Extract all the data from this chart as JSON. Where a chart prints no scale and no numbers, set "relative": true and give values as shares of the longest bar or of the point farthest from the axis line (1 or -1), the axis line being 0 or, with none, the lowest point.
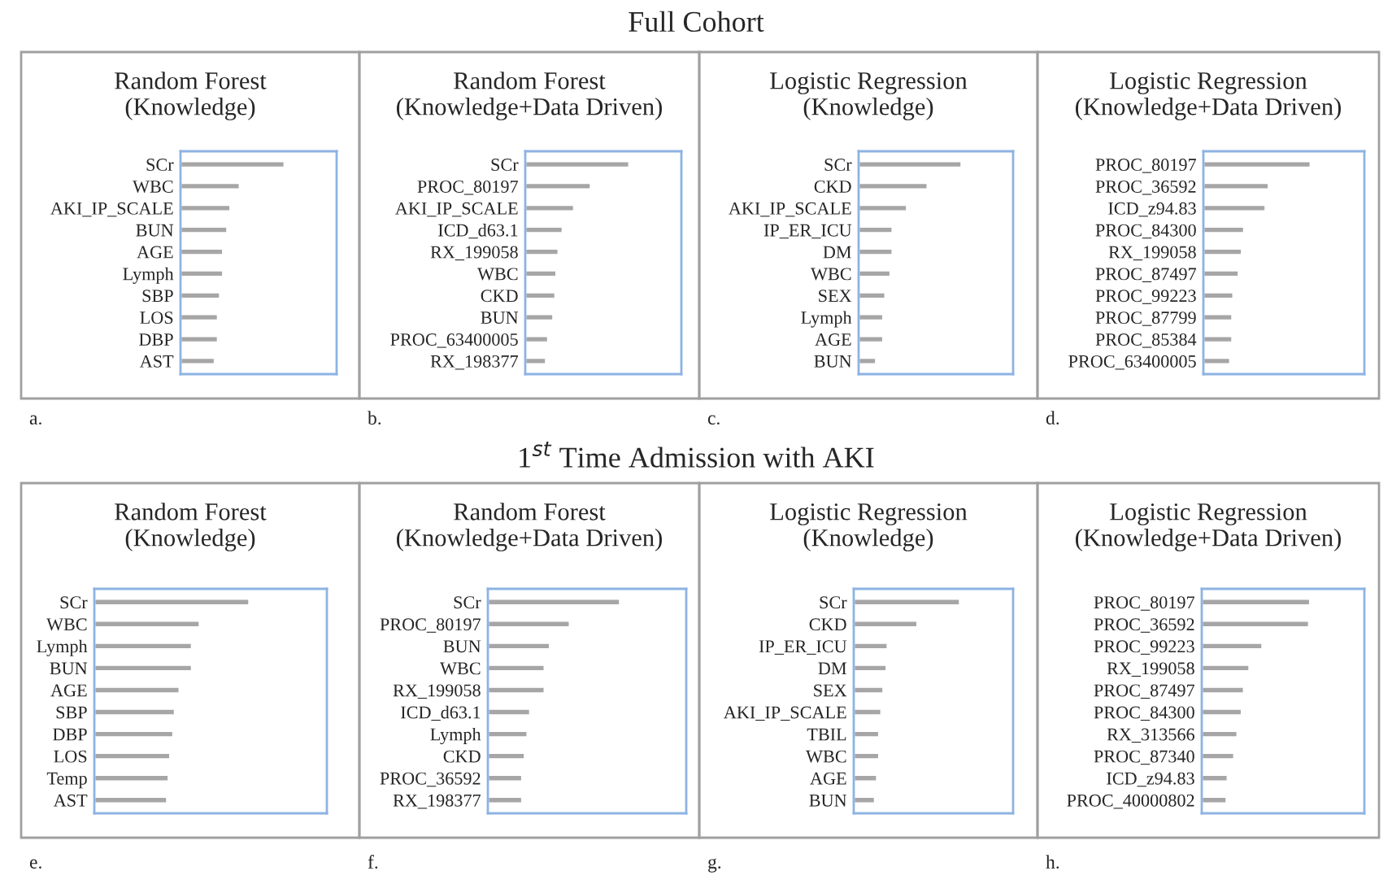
{
  "chart_data": [
    {
      "type": "bar",
      "orientation": "horizontal",
      "relative": true,
      "title": "Random Forest\n(Knowledge)",
      "color": "#a6a6a6",
      "annotations": [
        "Full Cohort",
        "a."
      ],
      "categories": [
        "SCr",
        "WBC",
        "AKI_IP_SCALE",
        "BUN",
        "AGE",
        "Lymph",
        "SBP",
        "LOS",
        "DBP",
        "AST"
      ],
      "values": [
        1,
        0.57,
        0.48,
        0.45,
        0.41,
        0.41,
        0.38,
        0.36,
        0.36,
        0.33
      ]
    },
    {
      "type": "bar",
      "orientation": "horizontal",
      "relative": true,
      "title": "Random Forest\n(Knowledge+Data Driven)",
      "color": "#a6a6a6",
      "annotations": [
        "b."
      ],
      "categories": [
        "SCr",
        "PROC_80197",
        "AKI_IP_SCALE",
        "ICD_d63.1",
        "RX_199058",
        "WBC",
        "CKD",
        "BUN",
        "PROC_63400005",
        "RX_198377"
      ],
      "values": [
        1,
        0.63,
        0.47,
        0.36,
        0.32,
        0.3,
        0.29,
        0.27,
        0.22,
        0.2
      ]
    },
    {
      "type": "bar",
      "orientation": "horizontal",
      "relative": true,
      "title": "Logistic Regression\n(Knowledge)",
      "color": "#a6a6a6",
      "annotations": [
        "c."
      ],
      "categories": [
        "SCr",
        "CKD",
        "AKI_IP_SCALE",
        "IP_ER_ICU",
        "DM",
        "WBC",
        "SEX",
        "Lymph",
        "AGE",
        "BUN"
      ],
      "values": [
        1,
        0.67,
        0.47,
        0.33,
        0.33,
        0.31,
        0.26,
        0.24,
        0.24,
        0.17
      ]
    },
    {
      "type": "bar",
      "orientation": "horizontal",
      "relative": true,
      "title": "Logistic Regression\n(Knowledge+Data Driven)",
      "color": "#a6a6a6",
      "annotations": [
        "d."
      ],
      "categories": [
        "PROC_80197",
        "PROC_36592",
        "ICD_z94.83",
        "PROC_84300",
        "RX_199058",
        "PROC_87497",
        "PROC_99223",
        "PROC_87799",
        "PROC_85384",
        "PROC_63400005"
      ],
      "values": [
        1,
        0.61,
        0.58,
        0.38,
        0.36,
        0.33,
        0.28,
        0.27,
        0.27,
        0.25
      ]
    },
    {
      "type": "bar",
      "orientation": "horizontal",
      "relative": true,
      "title": "Random Forest\n(Knowledge)",
      "color": "#a6a6a6",
      "annotations": [
        "1$^{st}$ Time Admission with AKI",
        "e."
      ],
      "categories": [
        "SCr",
        "WBC",
        "Lymph",
        "BUN",
        "AGE",
        "SBP",
        "DBP",
        "LOS",
        "Temp",
        "AST"
      ],
      "values": [
        1,
        0.68,
        0.63,
        0.63,
        0.55,
        0.52,
        0.51,
        0.49,
        0.48,
        0.47
      ]
    },
    {
      "type": "bar",
      "orientation": "horizontal",
      "relative": true,
      "title": "Random Forest\n(Knowledge+Data Driven)",
      "color": "#a6a6a6",
      "annotations": [
        "f."
      ],
      "categories": [
        "SCr",
        "PROC_80197",
        "BUN",
        "WBC",
        "RX_199058",
        "ICD_d63.1",
        "Lymph",
        "CKD",
        "PROC_36592",
        "RX_198377"
      ],
      "values": [
        1,
        0.62,
        0.47,
        0.43,
        0.43,
        0.32,
        0.3,
        0.28,
        0.26,
        0.26
      ]
    },
    {
      "type": "bar",
      "orientation": "horizontal",
      "relative": true,
      "title": "Logistic Regression\n(Knowledge)",
      "color": "#a6a6a6",
      "annotations": [
        "g."
      ],
      "categories": [
        "SCr",
        "CKD",
        "IP_ER_ICU",
        "DM",
        "SEX",
        "AKI_IP_SCALE",
        "TBIL",
        "WBC",
        "AGE",
        "BUN"
      ],
      "values": [
        1,
        0.6,
        0.32,
        0.31,
        0.28,
        0.26,
        0.24,
        0.24,
        0.22,
        0.2
      ]
    },
    {
      "type": "bar",
      "orientation": "horizontal",
      "relative": true,
      "title": "Logistic Regression\n(Knowledge+Data Driven)",
      "color": "#a6a6a6",
      "annotations": [
        "h."
      ],
      "categories": [
        "PROC_80197",
        "PROC_36592",
        "PROC_99223",
        "RX_199058",
        "PROC_87497",
        "PROC_84300",
        "RX_313566",
        "PROC_87340",
        "ICD_z94.83",
        "PROC_40000802"
      ],
      "values": [
        1,
        0.99,
        0.56,
        0.44,
        0.39,
        0.37,
        0.33,
        0.3,
        0.24,
        0.23
      ]
    }
  ]
}
